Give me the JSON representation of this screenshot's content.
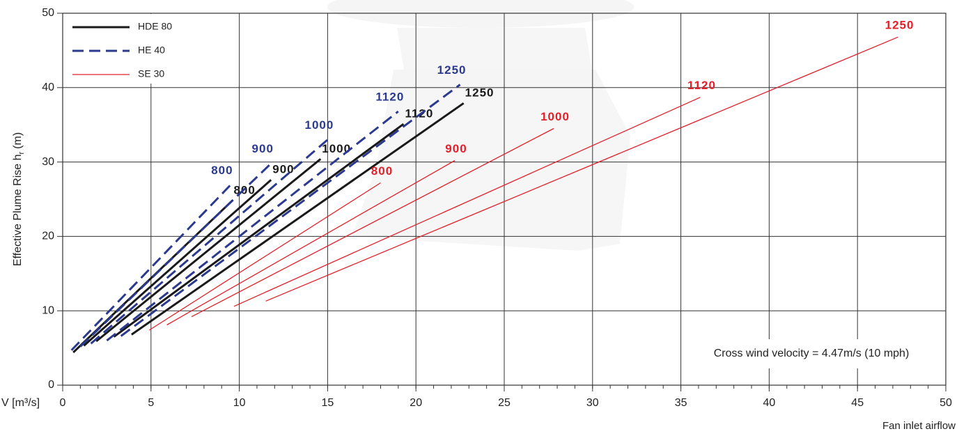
{
  "chart_data": {
    "type": "line",
    "ylabel": "Effective Plume Rise h",
    "ylabel_sub": "r",
    "ylabel_unit": "(m)",
    "xlabel_left": "V [m³/s]",
    "xlabel": "Fan inlet airflow",
    "annotation": "Cross wind velocity = 4.47m/s (10 mph)",
    "xlim": [
      0,
      50
    ],
    "xticks": [
      0,
      5,
      10,
      15,
      20,
      25,
      30,
      35,
      40,
      45,
      50
    ],
    "minor_tick_step": 1,
    "ylim": [
      0,
      50
    ],
    "yticks": [
      0,
      10,
      20,
      30,
      40,
      50
    ],
    "grid": true,
    "legend": "upper left",
    "groups": [
      {
        "name": "HDE 80",
        "color": "#1a1a1a",
        "dashed": false,
        "width": 3,
        "lines": [
          {
            "label": "800",
            "x": [
              0.6,
              9.6
            ],
            "values": [
              4.4,
              24.8
            ]
          },
          {
            "label": "900",
            "x": [
              1.2,
              11.8
            ],
            "values": [
              5.3,
              27.6
            ]
          },
          {
            "label": "1000",
            "x": [
              1.9,
              14.6
            ],
            "values": [
              5.9,
              30.4
            ]
          },
          {
            "label": "1120",
            "x": [
              2.9,
              19.3
            ],
            "values": [
              6.5,
              35.1
            ]
          },
          {
            "label": "1250",
            "x": [
              3.9,
              22.7
            ],
            "values": [
              6.8,
              37.9
            ]
          }
        ]
      },
      {
        "name": "HE 40",
        "color": "#2b3a8f",
        "dashed": true,
        "width": 3,
        "lines": [
          {
            "label": "800",
            "x": [
              0.5,
              9.5
            ],
            "values": [
              4.7,
              26.9
            ]
          },
          {
            "label": "900",
            "x": [
              1.0,
              11.8
            ],
            "values": [
              5.2,
              29.8
            ]
          },
          {
            "label": "1000",
            "x": [
              1.6,
              15.0
            ],
            "values": [
              5.6,
              33.0
            ]
          },
          {
            "label": "1120",
            "x": [
              2.5,
              19.0
            ],
            "values": [
              6.0,
              36.8
            ]
          },
          {
            "label": "1250",
            "x": [
              3.3,
              22.5
            ],
            "values": [
              6.6,
              40.4
            ]
          }
        ]
      },
      {
        "name": "SE 30",
        "color": "#e3202a",
        "dashed": false,
        "width": 1.3,
        "lines": [
          {
            "label": "800",
            "x": [
              4.9,
              18.0
            ],
            "values": [
              7.4,
              27.2
            ]
          },
          {
            "label": "900",
            "x": [
              5.9,
              22.2
            ],
            "values": [
              8.1,
              30.2
            ]
          },
          {
            "label": "1000",
            "x": [
              7.3,
              27.8
            ],
            "values": [
              9.2,
              34.5
            ]
          },
          {
            "label": "1120",
            "x": [
              9.7,
              36.1
            ],
            "values": [
              10.6,
              38.7
            ]
          },
          {
            "label": "1250",
            "x": [
              11.5,
              47.3
            ],
            "values": [
              11.3,
              46.8
            ]
          }
        ]
      }
    ]
  }
}
